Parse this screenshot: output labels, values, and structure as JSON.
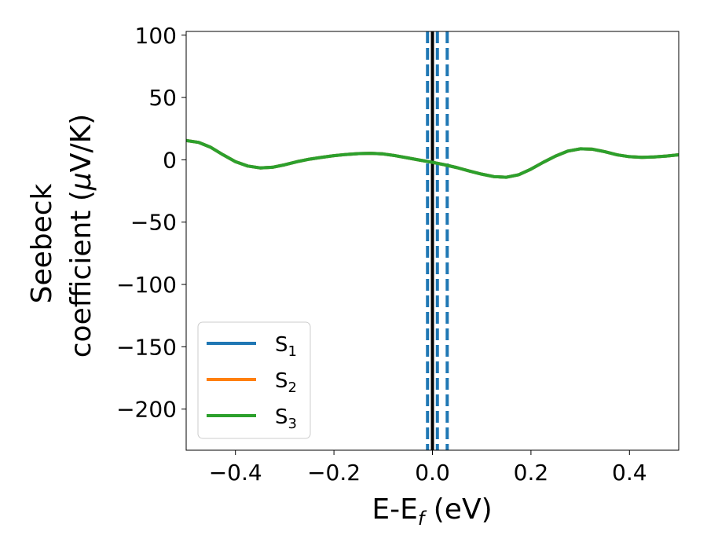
{
  "chart_data": {
    "type": "line",
    "xlabel": "E-E",
    "xlabel_sub": "f",
    "xlabel_unit": " (eV)",
    "ylabel_line1": "Seebeck",
    "ylabel_line2": "coefficient  (",
    "ylabel_mu": "μ",
    "ylabel_unit": "V/K)",
    "xlim": [
      -0.5,
      0.5
    ],
    "ylim": [
      -233,
      103
    ],
    "xticks": [
      -0.4,
      -0.2,
      0.0,
      0.2,
      0.4
    ],
    "xtick_labels": [
      "−0.4",
      "−0.2",
      "0.0",
      "0.2",
      "0.4"
    ],
    "yticks": [
      100,
      50,
      0,
      -50,
      -100,
      -150,
      -200
    ],
    "ytick_labels": [
      "100",
      "50",
      "0",
      "−50",
      "−100",
      "−150",
      "−200"
    ],
    "grid": false,
    "legend_position": "lower-left",
    "x": [
      -0.5,
      -0.475,
      -0.45,
      -0.425,
      -0.4,
      -0.375,
      -0.35,
      -0.325,
      -0.3,
      -0.275,
      -0.25,
      -0.225,
      -0.2,
      -0.175,
      -0.15,
      -0.125,
      -0.1,
      -0.075,
      -0.05,
      -0.025,
      0.0,
      0.025,
      0.05,
      0.075,
      0.1,
      0.125,
      0.15,
      0.175,
      0.2,
      0.225,
      0.25,
      0.275,
      0.3,
      0.325,
      0.35,
      0.375,
      0.4,
      0.425,
      0.45,
      0.475,
      0.5
    ],
    "series": [
      {
        "name_main": "S",
        "name_sub": "1",
        "color": "#1f77b4",
        "values": [
          15.5,
          14,
          10,
          4,
          -1.5,
          -5,
          -6.5,
          -6,
          -4,
          -1.5,
          0.5,
          2,
          3.3,
          4.3,
          5,
          5.2,
          4.7,
          3.3,
          1.5,
          -0.3,
          -2,
          -4,
          -6.3,
          -9,
          -11.5,
          -13.5,
          -14,
          -12,
          -7.5,
          -2,
          3,
          7,
          8.8,
          8.5,
          6.5,
          4,
          2.5,
          2,
          2.3,
          3,
          4
        ]
      },
      {
        "name_main": "S",
        "name_sub": "2",
        "color": "#ff7f0e",
        "values": [
          15.5,
          14,
          10,
          4,
          -1.5,
          -5,
          -6.5,
          -6,
          -4,
          -1.5,
          0.5,
          2,
          3.3,
          4.3,
          5,
          5.2,
          4.7,
          3.3,
          1.5,
          -0.3,
          -2,
          -4,
          -6.3,
          -9,
          -11.5,
          -13.5,
          -14,
          -12,
          -7.5,
          -2,
          3,
          7,
          8.8,
          8.5,
          6.5,
          4,
          2.5,
          2,
          2.3,
          3,
          4
        ]
      },
      {
        "name_main": "S",
        "name_sub": "3",
        "color": "#2ca02c",
        "values": [
          15.5,
          14,
          10,
          4,
          -1.5,
          -5,
          -6.5,
          -6,
          -4,
          -1.5,
          0.5,
          2,
          3.3,
          4.3,
          5,
          5.2,
          4.7,
          3.3,
          1.5,
          -0.3,
          -2,
          -4,
          -6.3,
          -9,
          -11.5,
          -13.5,
          -14,
          -12,
          -7.5,
          -2,
          3,
          7,
          8.8,
          8.5,
          6.5,
          4,
          2.5,
          2,
          2.3,
          3,
          4
        ]
      }
    ],
    "vlines": [
      {
        "x": 0.0,
        "color": "#000000",
        "style": "solid"
      },
      {
        "x": -0.01,
        "color": "#1f77b4",
        "style": "dashed"
      },
      {
        "x": 0.01,
        "color": "#1f77b4",
        "style": "dashed"
      },
      {
        "x": 0.03,
        "color": "#1f77b4",
        "style": "dashed"
      }
    ]
  }
}
